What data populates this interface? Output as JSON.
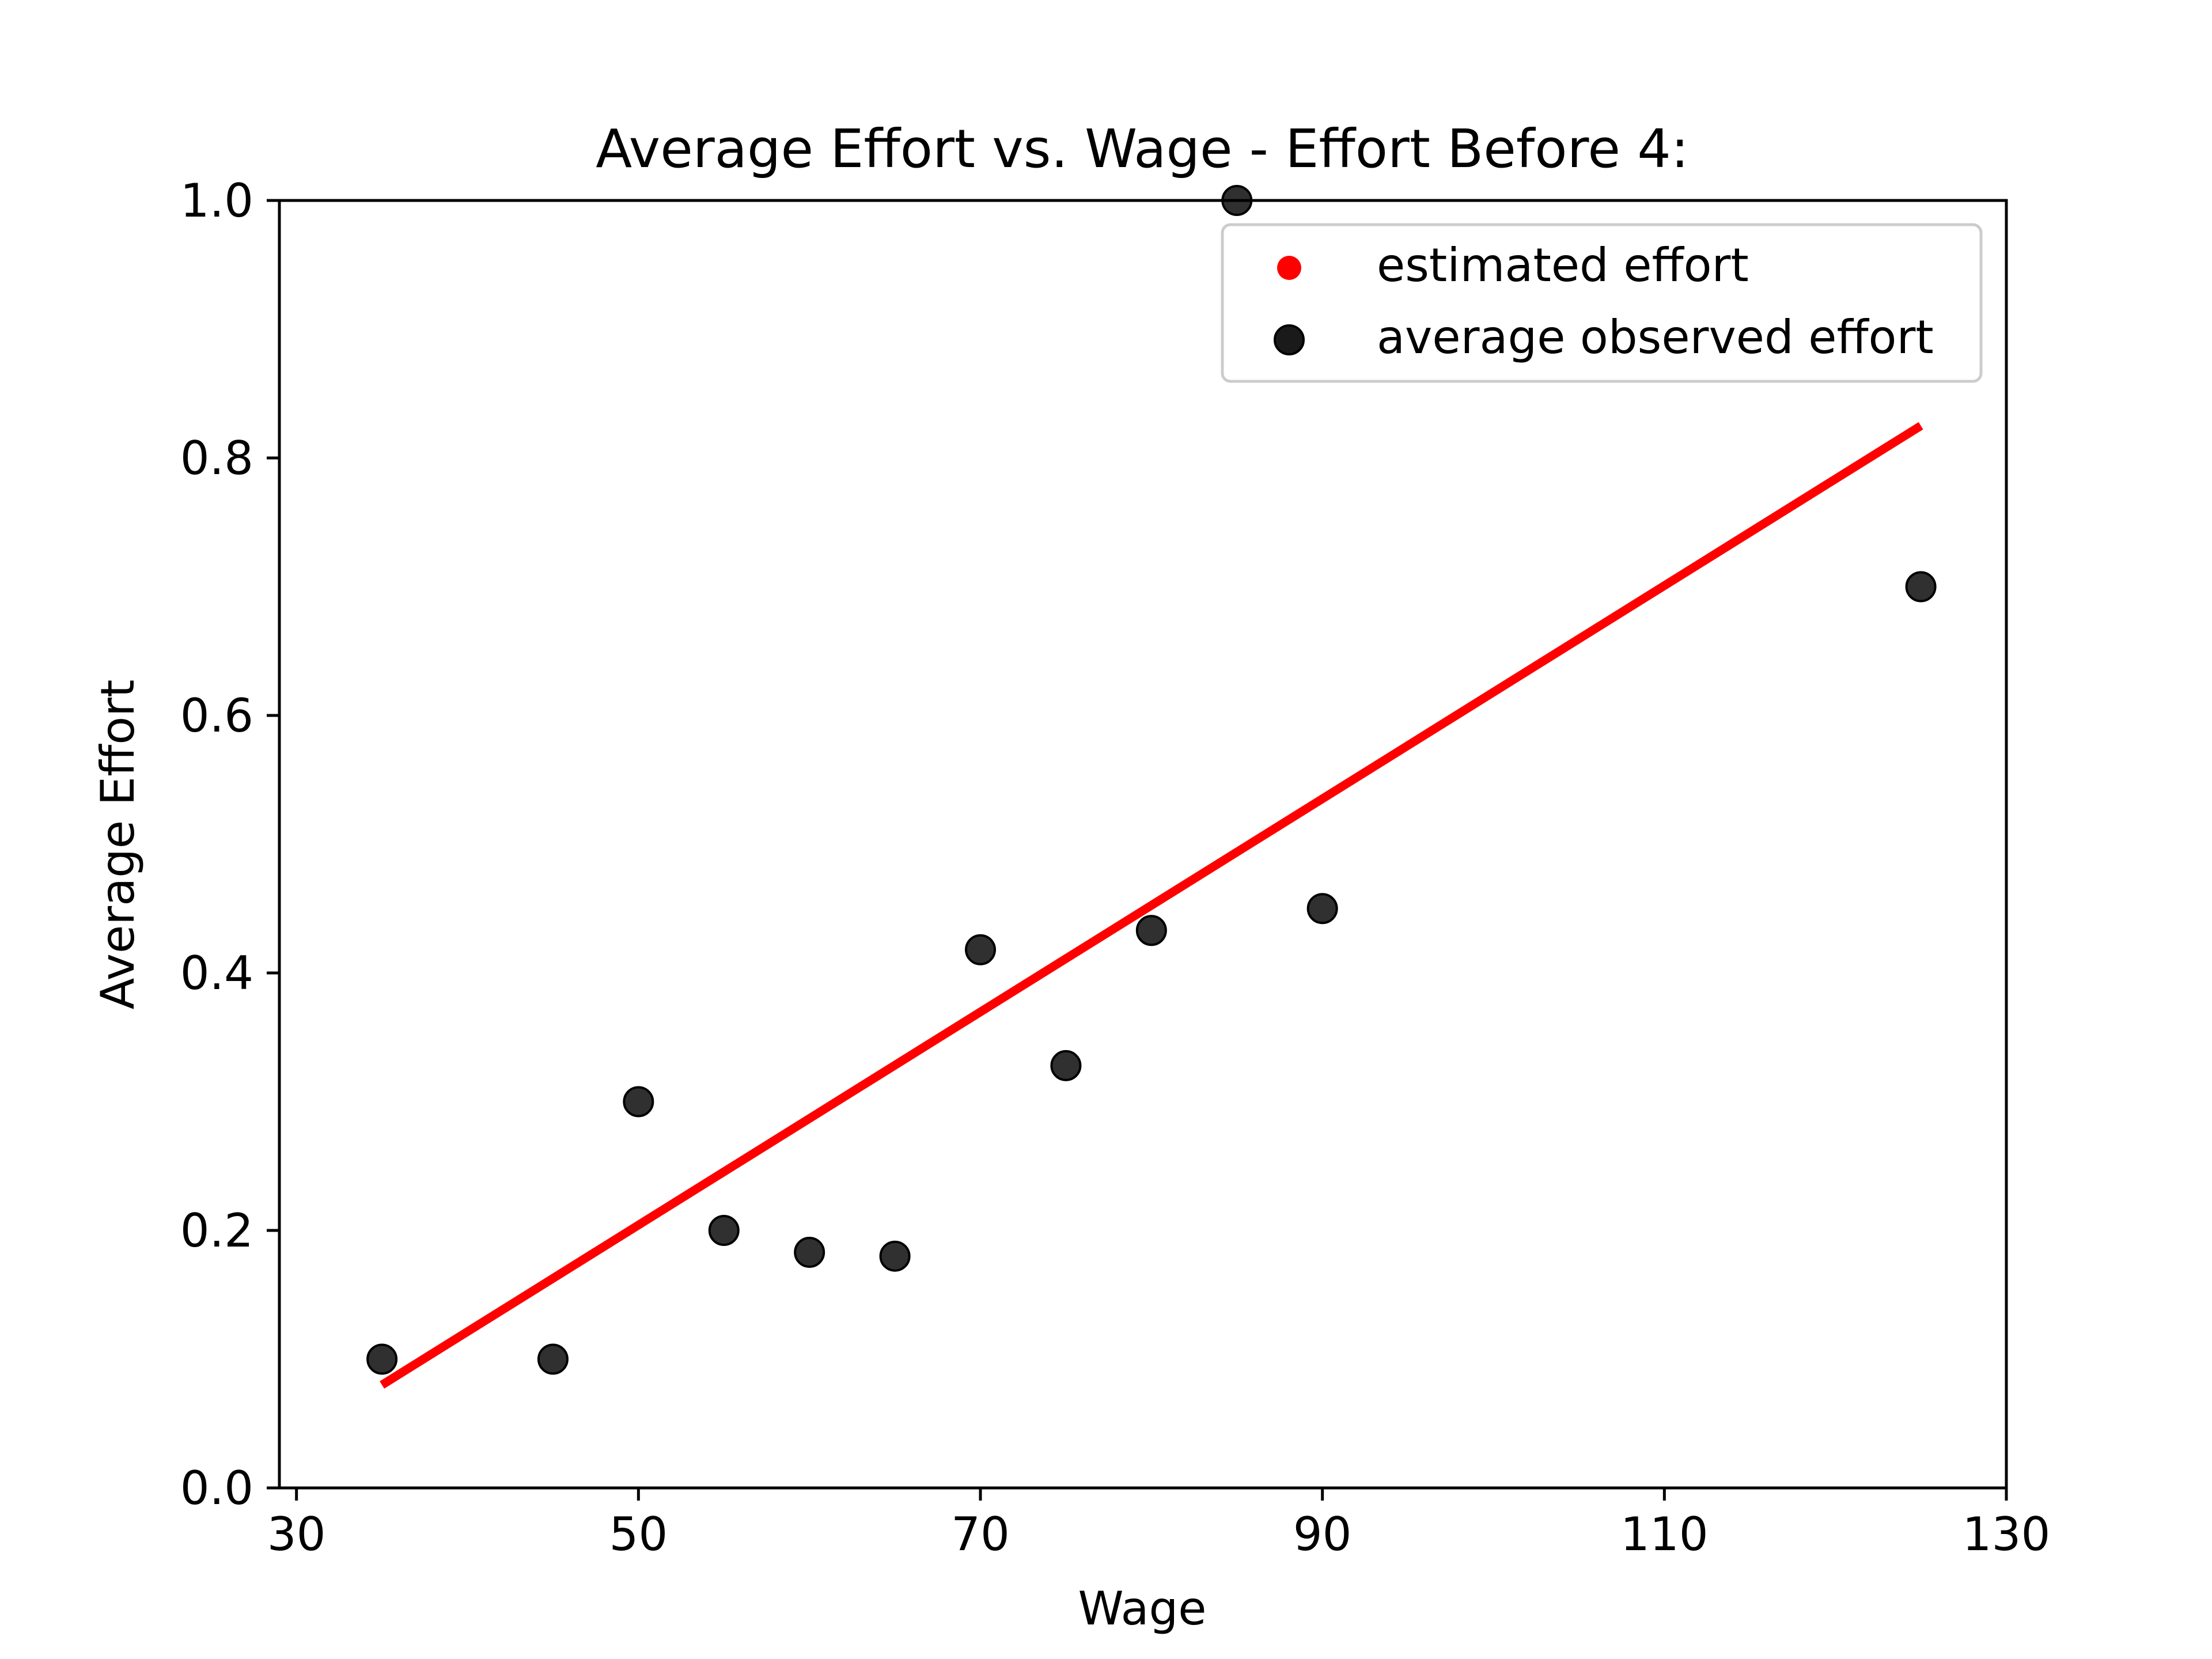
{
  "chart_data": {
    "type": "scatter",
    "title": "Average Effort vs. Wage - Effort Before 4:",
    "xlabel": "Wage",
    "ylabel": "Average Effort",
    "xlim": [
      29,
      130
    ],
    "ylim": [
      0.0,
      1.0
    ],
    "xticks": [
      30,
      50,
      70,
      90,
      110,
      130
    ],
    "xtick_labels": [
      "30",
      "50",
      "70",
      "90",
      "110",
      "130"
    ],
    "yticks": [
      0.0,
      0.2,
      0.4,
      0.6,
      0.8,
      1.0
    ],
    "ytick_labels": [
      "0.0",
      "0.2",
      "0.4",
      "0.6",
      "0.8",
      "1.0"
    ],
    "grid": false,
    "legend_position": "top-right",
    "series": [
      {
        "name": "estimated effort",
        "kind": "line",
        "color": "#ff0000",
        "x": [
          35,
          125
        ],
        "y": [
          0.08,
          0.825
        ]
      },
      {
        "name": "average observed effort",
        "kind": "scatter",
        "color": "#000000",
        "x": [
          35,
          45,
          50,
          55,
          60,
          65,
          70,
          75,
          80,
          85,
          90,
          125
        ],
        "y": [
          0.1,
          0.1,
          0.3,
          0.2,
          0.183,
          0.18,
          0.418,
          0.328,
          0.433,
          1.0,
          0.45,
          0.7
        ]
      }
    ],
    "legend": {
      "entries": [
        {
          "label": "estimated effort",
          "marker": "red-dot-icon",
          "color": "#ff0000"
        },
        {
          "label": "average observed effort",
          "marker": "dark-circle-icon",
          "color": "#1a1a1a"
        }
      ]
    }
  }
}
